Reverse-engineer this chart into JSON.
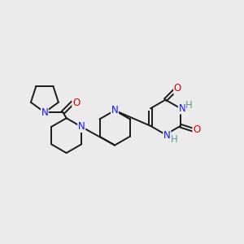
{
  "background_color": "#ebebeb",
  "line_color": "#1a1a1a",
  "N_color": "#1414ff",
  "O_color": "#dd0000",
  "H_color": "#5a9a9a",
  "font_size_atom": 8.5,
  "figsize": [
    3.0,
    3.0
  ],
  "dpi": 100,
  "xlim": [
    0.2,
    5.2
  ],
  "ylim": [
    0.4,
    3.2
  ]
}
